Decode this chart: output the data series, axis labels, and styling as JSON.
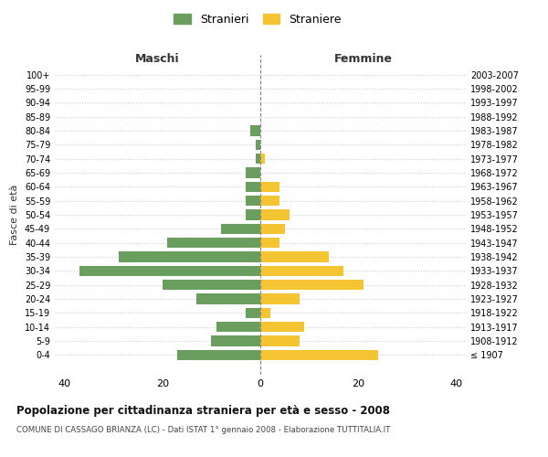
{
  "age_groups": [
    "100+",
    "95-99",
    "90-94",
    "85-89",
    "80-84",
    "75-79",
    "70-74",
    "65-69",
    "60-64",
    "55-59",
    "50-54",
    "45-49",
    "40-44",
    "35-39",
    "30-34",
    "25-29",
    "20-24",
    "15-19",
    "10-14",
    "5-9",
    "0-4"
  ],
  "birth_years": [
    "≤ 1907",
    "1908-1912",
    "1913-1917",
    "1918-1922",
    "1923-1927",
    "1928-1932",
    "1933-1937",
    "1938-1942",
    "1943-1947",
    "1948-1952",
    "1953-1957",
    "1958-1962",
    "1963-1967",
    "1968-1972",
    "1973-1977",
    "1978-1982",
    "1983-1987",
    "1988-1992",
    "1993-1997",
    "1998-2002",
    "2003-2007"
  ],
  "males": [
    0,
    0,
    0,
    0,
    2,
    1,
    1,
    3,
    3,
    3,
    3,
    8,
    19,
    29,
    37,
    20,
    13,
    3,
    9,
    10,
    17
  ],
  "females": [
    0,
    0,
    0,
    0,
    0,
    0,
    1,
    0,
    4,
    4,
    6,
    5,
    4,
    14,
    17,
    21,
    8,
    2,
    9,
    8,
    24
  ],
  "male_color": "#6a9e5f",
  "female_color": "#f5c432",
  "background_color": "#ffffff",
  "grid_color": "#cccccc",
  "xlim": 42,
  "title_main": "Popolazione per cittadinanza straniera per età e sesso - 2008",
  "title_sub": "COMUNE DI CASSAGO BRIANZA (LC) - Dati ISTAT 1° gennaio 2008 - Elaborazione TUTTITALIA.IT",
  "ylabel_left": "Fasce di età",
  "legend_male": "Stranieri",
  "legend_female": "Straniere",
  "col_male_header": "Maschi",
  "col_female_header": "Femmine",
  "bar_height": 0.75
}
